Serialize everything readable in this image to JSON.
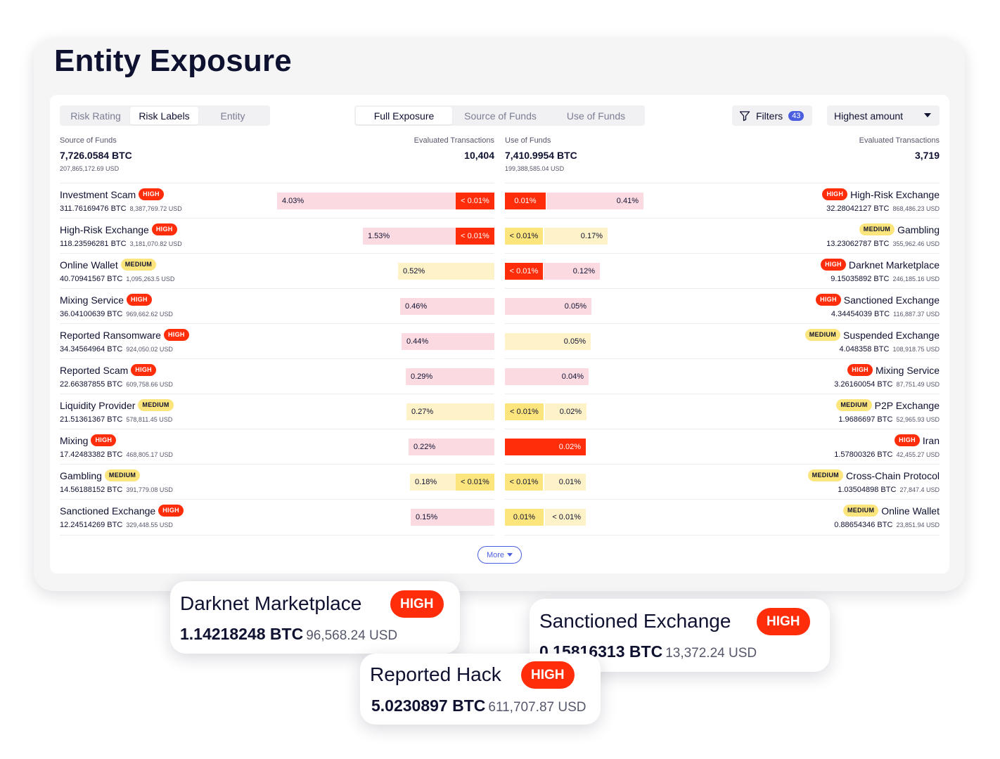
{
  "title": "Entity Exposure",
  "tabs_left": [
    "Risk Rating",
    "Risk Labels",
    "Entity"
  ],
  "tabs_left_active": 1,
  "tabs_center": [
    "Full Exposure",
    "Source of Funds",
    "Use of Funds"
  ],
  "tabs_center_active": 0,
  "filters": {
    "label": "Filters",
    "count": "43",
    "icon": "funnel-icon"
  },
  "sort": {
    "selected": "Highest amount",
    "icon": "caret-down-icon"
  },
  "source": {
    "label": "Source of Funds",
    "btc": "7,726.0584 BTC",
    "usd": "207,865,172.69 USD",
    "eval_label": "Evaluated Transactions",
    "eval_count": "10,404"
  },
  "use": {
    "label": "Use of Funds",
    "btc": "7,410.9954 BTC",
    "usd": "199,388,585.04 USD",
    "eval_label": "Evaluated Transactions",
    "eval_count": "3,719"
  },
  "colors": {
    "high": "#ff2d0a",
    "medium": "#fce57c",
    "pink": "#fbdbe1",
    "cream": "#fdf2c8",
    "accent": "#4a5fe0"
  },
  "rows": [
    {
      "left": {
        "name": "Investment Scam",
        "risk": "HIGH",
        "btc": "311.76169476 BTC",
        "usd": "8,387,769.72 USD",
        "bars": [
          {
            "text": "4.03%",
            "fill": "pink"
          },
          {
            "text": "< 0.01%",
            "fill": "red"
          }
        ]
      },
      "right": {
        "name": "High-Risk Exchange",
        "risk": "HIGH",
        "btc": "32.28042127 BTC",
        "usd": "868,486.23 USD",
        "bars": [
          {
            "text": "0.01%",
            "fill": "red"
          },
          {
            "text": "0.41%",
            "fill": "pink"
          }
        ]
      }
    },
    {
      "left": {
        "name": "High-Risk Exchange",
        "risk": "HIGH",
        "btc": "118.23596281 BTC",
        "usd": "3,181,070.82 USD",
        "bars": [
          {
            "text": "1.53%",
            "fill": "pink"
          },
          {
            "text": "< 0.01%",
            "fill": "red"
          }
        ]
      },
      "right": {
        "name": "Gambling",
        "risk": "MEDIUM",
        "btc": "13.23062787 BTC",
        "usd": "355,962.46 USD",
        "bars": [
          {
            "text": "< 0.01%",
            "fill": "yellow"
          },
          {
            "text": "0.17%",
            "fill": "cream"
          }
        ]
      }
    },
    {
      "left": {
        "name": "Online Wallet",
        "risk": "MEDIUM",
        "btc": "40.70941567 BTC",
        "usd": "1,095,263.5 USD",
        "bars": [
          {
            "text": "0.52%",
            "fill": "cream"
          }
        ]
      },
      "right": {
        "name": "Darknet Marketplace",
        "risk": "HIGH",
        "btc": "9.15035892 BTC",
        "usd": "246,185.16 USD",
        "bars": [
          {
            "text": "< 0.01%",
            "fill": "red"
          },
          {
            "text": "0.12%",
            "fill": "pink"
          }
        ]
      }
    },
    {
      "left": {
        "name": "Mixing Service",
        "risk": "HIGH",
        "btc": "36.04100639 BTC",
        "usd": "969,662.62 USD",
        "bars": [
          {
            "text": "0.46%",
            "fill": "pink"
          }
        ]
      },
      "right": {
        "name": "Sanctioned Exchange",
        "risk": "HIGH",
        "btc": "4.34454039 BTC",
        "usd": "116,887.37 USD",
        "bars": [
          {
            "text": "0.05%",
            "fill": "pink"
          }
        ]
      }
    },
    {
      "left": {
        "name": "Reported Ransomware",
        "risk": "HIGH",
        "btc": "34.34564964 BTC",
        "usd": "924,050.02 USD",
        "bars": [
          {
            "text": "0.44%",
            "fill": "pink"
          }
        ]
      },
      "right": {
        "name": "Suspended Exchange",
        "risk": "MEDIUM",
        "btc": "4.048358 BTC",
        "usd": "108,918.75 USD",
        "bars": [
          {
            "text": "0.05%",
            "fill": "cream"
          }
        ]
      }
    },
    {
      "left": {
        "name": "Reported Scam",
        "risk": "HIGH",
        "btc": "22.66387855 BTC",
        "usd": "609,758.66 USD",
        "bars": [
          {
            "text": "0.29%",
            "fill": "pink"
          }
        ]
      },
      "right": {
        "name": "Mixing Service",
        "risk": "HIGH",
        "btc": "3.26160054 BTC",
        "usd": "87,751.49 USD",
        "bars": [
          {
            "text": "0.04%",
            "fill": "pink"
          }
        ]
      }
    },
    {
      "left": {
        "name": "Liquidity Provider",
        "risk": "MEDIUM",
        "btc": "21.51361367 BTC",
        "usd": "578,811.45 USD",
        "bars": [
          {
            "text": "0.27%",
            "fill": "cream"
          }
        ]
      },
      "right": {
        "name": "P2P Exchange",
        "risk": "MEDIUM",
        "btc": "1.9686697 BTC",
        "usd": "52,965.93 USD",
        "bars": [
          {
            "text": "< 0.01%",
            "fill": "yellow"
          },
          {
            "text": "0.02%",
            "fill": "cream"
          }
        ]
      }
    },
    {
      "left": {
        "name": "Mixing",
        "risk": "HIGH",
        "btc": "17.42483382 BTC",
        "usd": "468,805.17 USD",
        "bars": [
          {
            "text": "0.22%",
            "fill": "pink"
          }
        ]
      },
      "right": {
        "name": "Iran",
        "risk": "HIGH",
        "btc": "1.57800326 BTC",
        "usd": "42,455.27 USD",
        "bars": [
          {
            "text": "0.02%",
            "fill": "red"
          }
        ]
      }
    },
    {
      "left": {
        "name": "Gambling",
        "risk": "MEDIUM",
        "btc": "14.56188152 BTC",
        "usd": "391,779.08 USD",
        "bars": [
          {
            "text": "0.18%",
            "fill": "cream"
          },
          {
            "text": "< 0.01%",
            "fill": "yellow"
          }
        ]
      },
      "right": {
        "name": "Cross-Chain Protocol",
        "risk": "MEDIUM",
        "btc": "1.03504898 BTC",
        "usd": "27,847.4 USD",
        "bars": [
          {
            "text": "< 0.01%",
            "fill": "yellow"
          },
          {
            "text": "0.01%",
            "fill": "cream"
          }
        ]
      }
    },
    {
      "left": {
        "name": "Sanctioned Exchange",
        "risk": "HIGH",
        "btc": "12.24514269 BTC",
        "usd": "329,448.55 USD",
        "bars": [
          {
            "text": "0.15%",
            "fill": "pink"
          }
        ]
      },
      "right": {
        "name": "Online Wallet",
        "risk": "MEDIUM",
        "btc": "0.88654346 BTC",
        "usd": "23,851.94 USD",
        "bars": [
          {
            "text": "0.01%",
            "fill": "yellow"
          },
          {
            "text": "< 0.01%",
            "fill": "cream"
          }
        ]
      }
    }
  ],
  "more_label": "More",
  "popouts": [
    {
      "name": "Darknet Marketplace",
      "risk": "HIGH",
      "btc": "1.14218248 BTC",
      "usd": "96,568.24 USD"
    },
    {
      "name": "Sanctioned Exchange",
      "risk": "HIGH",
      "btc": "0.15816313 BTC",
      "usd": "13,372.24 USD"
    },
    {
      "name": "Reported Hack",
      "risk": "HIGH",
      "btc": "5.0230897 BTC",
      "usd": "611,707.87 USD"
    }
  ]
}
